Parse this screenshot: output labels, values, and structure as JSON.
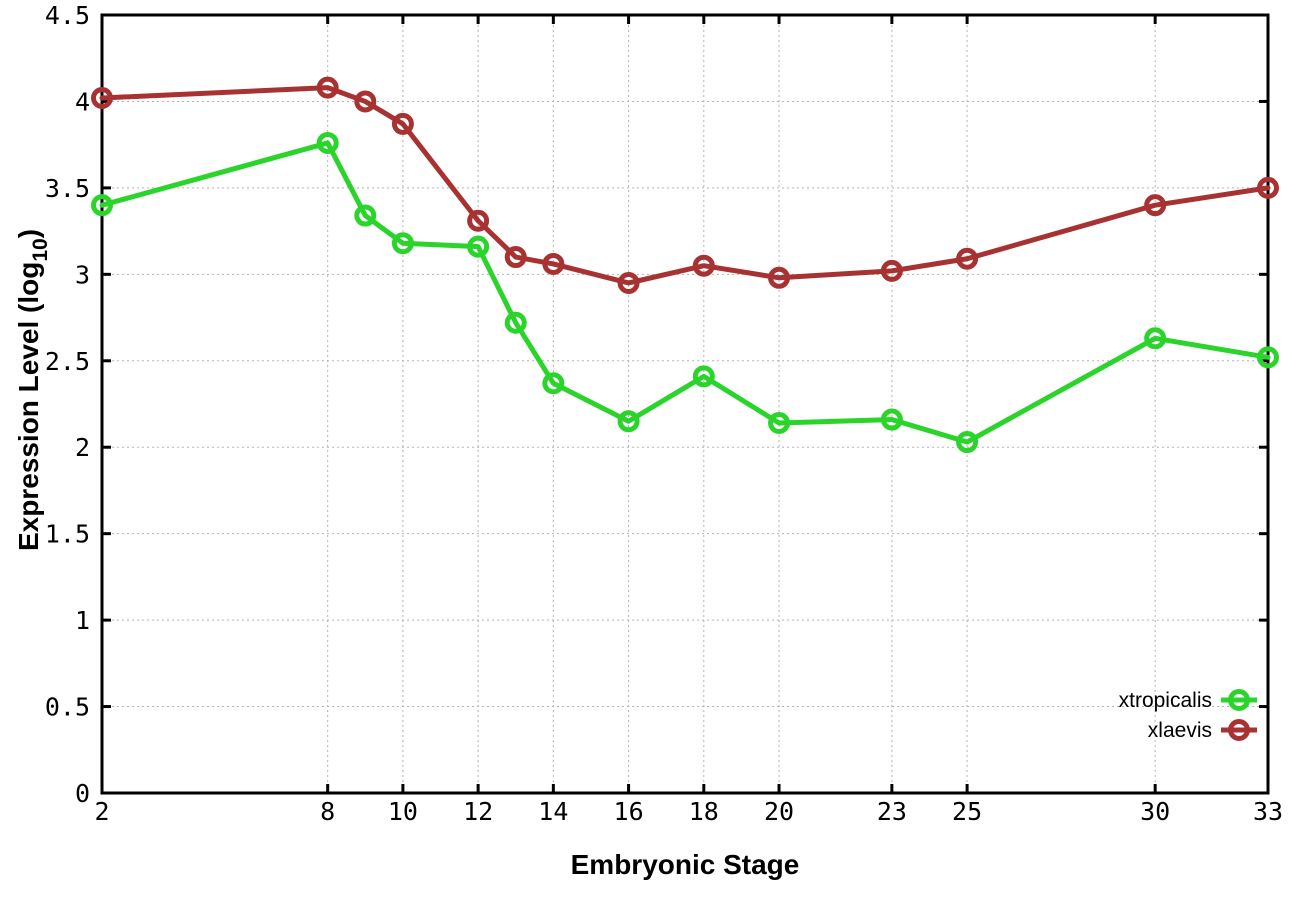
{
  "chart_data": {
    "type": "line",
    "title": "",
    "xlabel": "Embryonic Stage",
    "ylabel": "Expression Level (log10)",
    "ylabel_parts": {
      "main": "Expression Level (log",
      "sub": "10",
      "end": ")"
    },
    "xlim": [
      2,
      33
    ],
    "ylim": [
      0,
      4.5
    ],
    "grid": true,
    "x_ticks": [
      2,
      8,
      10,
      12,
      14,
      16,
      18,
      20,
      23,
      25,
      30,
      33
    ],
    "x_tick_labels": [
      "2",
      "8",
      "10",
      "12",
      "14",
      "16",
      "18",
      "20",
      "23",
      "25",
      "30",
      "33"
    ],
    "y_ticks": [
      0,
      0.5,
      1,
      1.5,
      2,
      2.5,
      3,
      3.5,
      4,
      4.5
    ],
    "y_tick_labels": [
      "0",
      "0.5",
      "1",
      "1.5",
      "2",
      "2.5",
      "3",
      "3.5",
      "4",
      "4.5"
    ],
    "x": [
      2,
      8,
      9,
      10,
      12,
      13,
      14,
      16,
      18,
      20,
      23,
      25,
      30,
      33
    ],
    "series": [
      {
        "name": "xtropicalis",
        "color": "#2bd42b",
        "values": [
          3.4,
          3.76,
          3.34,
          3.18,
          3.16,
          2.72,
          2.37,
          2.15,
          2.41,
          2.14,
          2.16,
          2.03,
          2.63,
          2.52
        ]
      },
      {
        "name": "xlaevis",
        "color": "#a83232",
        "values": [
          4.02,
          4.08,
          4.0,
          3.87,
          3.31,
          3.1,
          3.06,
          2.95,
          3.05,
          2.98,
          3.02,
          3.09,
          3.4,
          3.5
        ]
      }
    ],
    "legend_position": "bottom-right",
    "colors": {
      "grid": "#b3b3b3",
      "axis": "#000000",
      "background": "#ffffff"
    },
    "marker": "open-circle"
  }
}
